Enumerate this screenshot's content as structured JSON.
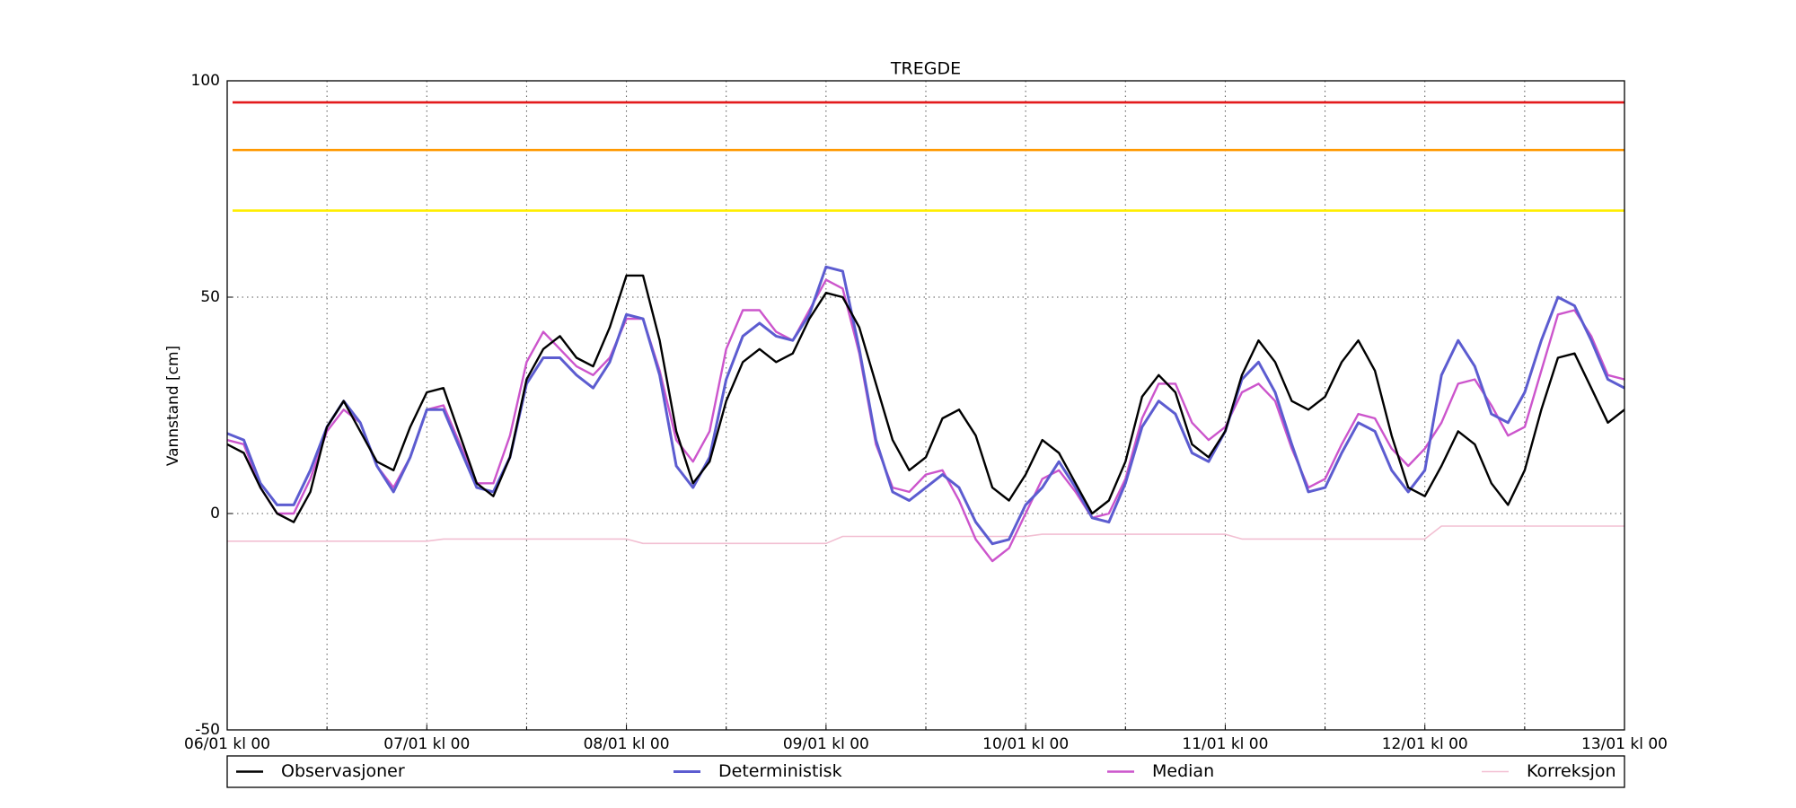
{
  "chart_data": {
    "type": "line",
    "title": "TREGDE",
    "ylabel": "Vannstand [cm]",
    "x": [
      0,
      2,
      4,
      6,
      8,
      10,
      12,
      14,
      16,
      18,
      20,
      22,
      24,
      26,
      28,
      30,
      32,
      34,
      36,
      38,
      40,
      42,
      44,
      46,
      48,
      50,
      52,
      54,
      56,
      58,
      60,
      62,
      64,
      66,
      68,
      70,
      72,
      74,
      76,
      78,
      80,
      82,
      84,
      86,
      88,
      90,
      92,
      94,
      96,
      98,
      100,
      102,
      104,
      106,
      108,
      110,
      112,
      114,
      116,
      118,
      120,
      122,
      124,
      126,
      128,
      130,
      132,
      134,
      136,
      138,
      140,
      142,
      144,
      146,
      148,
      150,
      152,
      154,
      156,
      158,
      160,
      162,
      164,
      166,
      168
    ],
    "xlim": [
      0,
      168
    ],
    "xticks": [
      {
        "value": 0,
        "label": "06/01 kl 00"
      },
      {
        "value": 24,
        "label": "07/01 kl 00"
      },
      {
        "value": 48,
        "label": "08/01 kl 00"
      },
      {
        "value": 72,
        "label": "09/01 kl 00"
      },
      {
        "value": 96,
        "label": "10/01 kl 00"
      },
      {
        "value": 120,
        "label": "11/01 kl 00"
      },
      {
        "value": 144,
        "label": "12/01 kl 00"
      },
      {
        "value": 168,
        "label": "13/01 kl 00"
      }
    ],
    "xminorticks": [
      12,
      36,
      60,
      84,
      108,
      132,
      156
    ],
    "ylim": [
      -50,
      100
    ],
    "yticks": [
      -50,
      0,
      50,
      100
    ],
    "grid": true,
    "legend": "bottom",
    "hlines": [
      {
        "value": 95,
        "color": "#e31a1c"
      },
      {
        "value": 84,
        "color": "#ff9900"
      },
      {
        "value": 70,
        "color": "#ffee00"
      }
    ],
    "series": [
      {
        "name": "Observasjoner",
        "color": "#000000",
        "width": 2.4,
        "values": [
          16,
          14,
          6,
          0,
          -2,
          5,
          20,
          26,
          19,
          12,
          10,
          20,
          28,
          29,
          18,
          7,
          4,
          13,
          31,
          38,
          41,
          36,
          34,
          43,
          55,
          55,
          40,
          19,
          7,
          12,
          26,
          35,
          38,
          35,
          37,
          45,
          51,
          50,
          43,
          30,
          17,
          10,
          13,
          22,
          24,
          18,
          6,
          3,
          9,
          17,
          14,
          7,
          0,
          3,
          12,
          27,
          32,
          28,
          16,
          13,
          19,
          32,
          40,
          35,
          26,
          24,
          27,
          35,
          40,
          33,
          18,
          6,
          4,
          11,
          19,
          16,
          7,
          2,
          10,
          24,
          36,
          37,
          29,
          21,
          24
        ]
      },
      {
        "name": "Deterministisk",
        "color": "#5c5cd0",
        "width": 3,
        "values": [
          18.5,
          17,
          7,
          2,
          2,
          10,
          20,
          26,
          21,
          11,
          5,
          13,
          24,
          24,
          15,
          6,
          5,
          13,
          30,
          36,
          36,
          32,
          29,
          35,
          46,
          45,
          32,
          11,
          6,
          13,
          31,
          41,
          44,
          41,
          40,
          46,
          57,
          56,
          38,
          17,
          5,
          3,
          6,
          9,
          6,
          -2,
          -7,
          -6,
          2,
          6,
          12,
          6,
          -1,
          -2,
          7,
          20,
          26,
          23,
          14,
          12,
          19,
          31,
          35,
          28,
          16,
          5,
          6,
          14,
          21,
          19,
          10,
          5,
          10,
          32,
          40,
          34,
          23,
          21,
          28,
          40,
          50,
          48,
          40,
          31,
          29
        ]
      },
      {
        "name": "Median",
        "color": "#cc55cc",
        "width": 2.4,
        "values": [
          17,
          16,
          6,
          0,
          0,
          8,
          19,
          24,
          21,
          11,
          6,
          13,
          24,
          25,
          16,
          7,
          7,
          18,
          35,
          42,
          38,
          34,
          32,
          36,
          45,
          45,
          33,
          17,
          12,
          19,
          38,
          47,
          47,
          42,
          40,
          47,
          54,
          52,
          37,
          16,
          6,
          5,
          9,
          10,
          3,
          -6,
          -11,
          -8,
          0,
          8,
          10,
          5,
          -1,
          0,
          8,
          22,
          30,
          30,
          21,
          17,
          20,
          28,
          30,
          26,
          15,
          6,
          8,
          16,
          23,
          22,
          15,
          11,
          15,
          21,
          30,
          31,
          25,
          18,
          20,
          33,
          46,
          47,
          41,
          32,
          31
        ]
      },
      {
        "name": "Korreksjon",
        "color": "#f2bfd2",
        "width": 1.6,
        "values": [
          -6.4,
          -6.4,
          -6.4,
          -6.4,
          -6.4,
          -6.4,
          -6.4,
          -6.4,
          -6.4,
          -6.4,
          -6.4,
          -6.4,
          -6.4,
          -5.9,
          -5.9,
          -5.9,
          -5.9,
          -5.9,
          -5.9,
          -5.9,
          -5.9,
          -5.9,
          -5.9,
          -5.9,
          -5.9,
          -6.9,
          -6.9,
          -6.9,
          -6.9,
          -6.9,
          -6.9,
          -6.9,
          -6.9,
          -6.9,
          -6.9,
          -6.9,
          -6.9,
          -5.3,
          -5.3,
          -5.3,
          -5.3,
          -5.3,
          -5.3,
          -5.3,
          -5.3,
          -5.3,
          -5.3,
          -5.3,
          -5.3,
          -4.8,
          -4.8,
          -4.8,
          -4.8,
          -4.8,
          -4.8,
          -4.8,
          -4.8,
          -4.8,
          -4.8,
          -4.8,
          -4.8,
          -5.9,
          -5.9,
          -5.9,
          -5.9,
          -5.9,
          -5.9,
          -5.9,
          -5.9,
          -5.9,
          -5.9,
          -5.9,
          -5.9,
          -2.9,
          -2.9,
          -2.9,
          -2.9,
          -2.9,
          -2.9,
          -2.9,
          -2.9,
          -2.9,
          -2.9,
          -2.9,
          -2.9
        ]
      }
    ]
  }
}
